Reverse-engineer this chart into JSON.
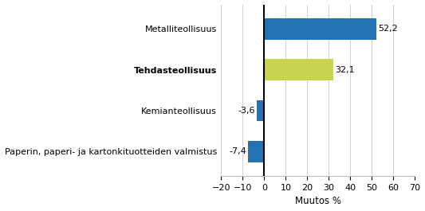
{
  "categories": [
    "Paperin, paperi- ja kartonkituotteiden valmistus",
    "Kemianteollisuus",
    "Tehdasteollisuus",
    "Metalliteollisuus"
  ],
  "values": [
    -7.4,
    -3.6,
    32.1,
    52.2
  ],
  "bar_colors": [
    "#2272b4",
    "#2272b4",
    "#c8d44e",
    "#2272b4"
  ],
  "label_bold": [
    false,
    false,
    true,
    false
  ],
  "xlabel": "Muutos %",
  "xlim": [
    -20,
    70
  ],
  "xticks": [
    -20,
    -10,
    0,
    10,
    20,
    30,
    40,
    50,
    60,
    70
  ],
  "value_labels": [
    "-7,4",
    "-3,6",
    "32,1",
    "52,2"
  ],
  "bar_height": 0.52,
  "background_color": "#ffffff",
  "grid_color": "#d0d0d0",
  "xlabel_fontsize": 8.5,
  "tick_fontsize": 8,
  "label_fontsize": 8
}
